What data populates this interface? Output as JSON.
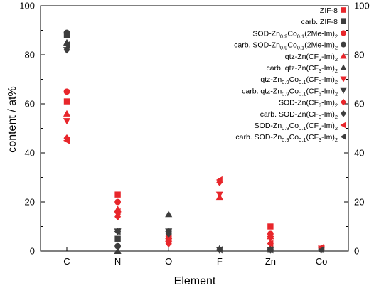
{
  "chart_data": {
    "type": "scatter",
    "title": "",
    "xlabel": "Element",
    "ylabel": "content / at%",
    "categories": [
      "C",
      "N",
      "O",
      "F",
      "Zn",
      "Co"
    ],
    "ylim": [
      0,
      100
    ],
    "yticks": [
      0,
      20,
      40,
      60,
      80,
      100
    ],
    "y2ticks": [
      0,
      20,
      40,
      60,
      80,
      100
    ],
    "grid": false,
    "legend_position": "top-right",
    "red": "#e8262b",
    "black": "#3d3d3d",
    "series": [
      {
        "name": "ZIF-8",
        "marker": "square",
        "color": "red",
        "values": [
          61,
          23,
          null,
          null,
          10,
          null
        ]
      },
      {
        "name": "carb. ZIF-8",
        "marker": "square",
        "color": "black",
        "values": [
          88,
          5,
          6,
          null,
          0.5,
          null
        ]
      },
      {
        "name": "SOD-Zn0.9Co0.1(2Me-Im)2",
        "name_parts": [
          "SOD-Zn",
          "0.9",
          "Co",
          "0.1",
          "(2Me-Im)",
          "2"
        ],
        "marker": "circle",
        "color": "red",
        "values": [
          65,
          20,
          6,
          null,
          7,
          1
        ]
      },
      {
        "name": "carb. SOD-Zn0.9Co0.1(2Me-Im)2",
        "name_parts": [
          "carb. SOD-Zn",
          "0.9",
          "Co",
          "0.1",
          "(2Me-Im)",
          "2"
        ],
        "marker": "circle",
        "color": "black",
        "values": [
          89,
          2,
          8,
          null,
          0.5,
          0.5
        ]
      },
      {
        "name": "qtz-Zn(CF3-Im)2",
        "name_parts": [
          "qtz-Zn(CF",
          "3",
          "-Im)",
          "2"
        ],
        "marker": "triangle-up",
        "color": "red",
        "values": [
          56,
          17,
          5,
          22,
          6,
          null
        ]
      },
      {
        "name": "carb. qtz-Zn(CF3-Im)2",
        "name_parts": [
          "carb. qtz-Zn(CF",
          "3",
          "-Im)",
          "2"
        ],
        "marker": "triangle-up",
        "color": "black",
        "values": [
          85,
          0,
          15,
          1,
          1,
          null
        ]
      },
      {
        "name": "qtz-Zn0.9Co0.1(CF3-Im)2",
        "name_parts": [
          "qtz-Zn",
          "0.9",
          "Co",
          "0.1",
          "(CF",
          "3",
          "-Im)",
          "2"
        ],
        "marker": "triangle-down",
        "color": "red",
        "values": [
          53,
          15,
          4,
          23,
          5,
          1
        ]
      },
      {
        "name": "carb. qtz-Zn0.9Co0.1(CF3-Im)2",
        "name_parts": [
          "carb. qtz-Zn",
          "0.9",
          "Co",
          "0.1",
          "(CF",
          "3",
          "-Im)",
          "2"
        ],
        "marker": "triangle-down",
        "color": "black",
        "values": [
          82,
          8,
          8,
          0.5,
          0.5,
          0.5
        ]
      },
      {
        "name": "SOD-Zn(CF3-Im)2",
        "name_parts": [
          "SOD-Zn(CF",
          "3",
          "-Im)",
          "2"
        ],
        "marker": "diamond",
        "color": "red",
        "values": [
          46,
          14,
          3,
          28,
          3,
          null
        ]
      },
      {
        "name": "carb. SOD-Zn(CF3-Im)2",
        "name_parts": [
          "carb. SOD-Zn(CF",
          "3",
          "-Im)",
          "2"
        ],
        "marker": "diamond",
        "color": "black",
        "values": [
          82,
          8,
          7,
          0.5,
          0.5,
          null
        ]
      },
      {
        "name": "SOD-Zn0.9Co0.1(CF3-Im)2",
        "name_parts": [
          "SOD-Zn",
          "0.9",
          "Co",
          "0.1",
          "(CF",
          "3",
          "-Im)",
          "2"
        ],
        "marker": "triangle-left",
        "color": "red",
        "values": [
          45,
          16,
          4,
          29,
          3,
          1.5
        ]
      },
      {
        "name": "carb. SOD-Zn0.9Co0.1(CF3-Im)2",
        "name_parts": [
          "carb. SOD-Zn",
          "0.9",
          "Co",
          "0.1",
          "(CF",
          "3",
          "-Im)",
          "2"
        ],
        "marker": "triangle-left",
        "color": "black",
        "values": [
          84,
          8,
          8,
          0.5,
          0.5,
          0.5
        ]
      }
    ]
  }
}
